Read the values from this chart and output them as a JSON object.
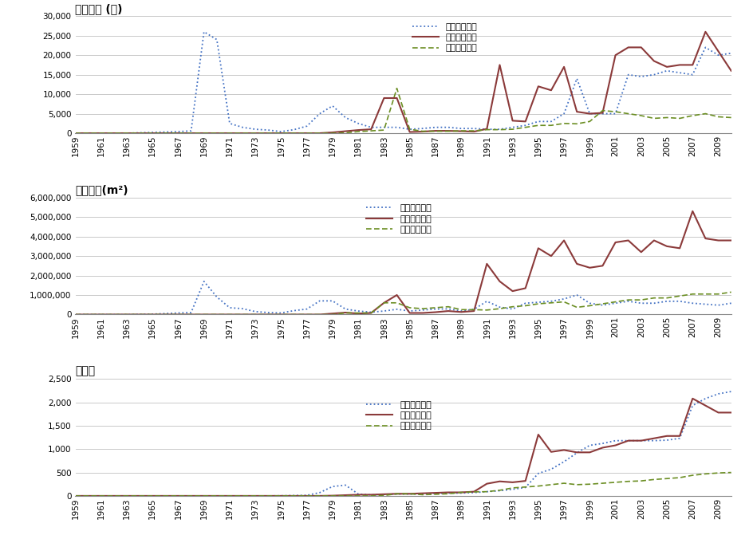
{
  "years": [
    1959,
    1960,
    1961,
    1962,
    1963,
    1964,
    1965,
    1966,
    1967,
    1968,
    1969,
    1970,
    1971,
    1972,
    1973,
    1974,
    1975,
    1976,
    1977,
    1978,
    1979,
    1980,
    1981,
    1982,
    1983,
    1984,
    1985,
    1986,
    1987,
    1988,
    1989,
    1990,
    1991,
    1992,
    1993,
    1994,
    1995,
    1996,
    1997,
    1998,
    1999,
    2000,
    2001,
    2002,
    2003,
    2004,
    2005,
    2006,
    2007,
    2008,
    2009,
    2010
  ],
  "workers_gwamil": [
    0,
    0,
    0,
    0,
    0,
    100,
    200,
    300,
    400,
    600,
    26000,
    24000,
    2500,
    1500,
    1000,
    800,
    400,
    900,
    1800,
    5000,
    7000,
    4000,
    2500,
    1500,
    1500,
    1500,
    1000,
    1200,
    1500,
    1500,
    1200,
    1200,
    1000,
    1000,
    1500,
    2000,
    3000,
    3000,
    5000,
    14000,
    5000,
    5000,
    5000,
    15000,
    14500,
    15000,
    16000,
    15500,
    15000,
    22000,
    20000,
    20500
  ],
  "workers_seongjang": [
    0,
    0,
    0,
    0,
    0,
    0,
    0,
    0,
    0,
    0,
    0,
    0,
    0,
    0,
    0,
    0,
    0,
    0,
    0,
    0,
    200,
    500,
    800,
    1000,
    9000,
    9000,
    300,
    400,
    600,
    600,
    500,
    400,
    1100,
    17500,
    3200,
    3000,
    12000,
    11000,
    17000,
    5500,
    5000,
    5200,
    20000,
    22000,
    22000,
    18500,
    17000,
    17500,
    17500,
    26000,
    21000,
    16000
  ],
  "workers_jayeon": [
    0,
    0,
    0,
    0,
    0,
    0,
    0,
    0,
    0,
    0,
    0,
    0,
    0,
    0,
    0,
    0,
    0,
    0,
    0,
    0,
    0,
    100,
    400,
    600,
    800,
    11500,
    1000,
    500,
    500,
    500,
    600,
    600,
    900,
    900,
    1000,
    1500,
    2000,
    2000,
    2500,
    2400,
    3000,
    5800,
    5500,
    5000,
    4500,
    3800,
    4000,
    3800,
    4500,
    5000,
    4200,
    4000
  ],
  "area_gwamil": [
    0,
    0,
    0,
    0,
    0,
    10000,
    20000,
    50000,
    80000,
    100000,
    1700000,
    900000,
    350000,
    300000,
    150000,
    100000,
    80000,
    200000,
    280000,
    700000,
    700000,
    280000,
    180000,
    120000,
    180000,
    270000,
    180000,
    230000,
    280000,
    290000,
    180000,
    270000,
    680000,
    380000,
    280000,
    580000,
    630000,
    680000,
    800000,
    1000000,
    580000,
    480000,
    580000,
    680000,
    580000,
    580000,
    680000,
    680000,
    580000,
    530000,
    480000,
    580000
  ],
  "area_seongjang": [
    0,
    0,
    0,
    0,
    0,
    0,
    0,
    0,
    0,
    0,
    0,
    0,
    0,
    0,
    0,
    0,
    0,
    0,
    0,
    0,
    50000,
    100000,
    50000,
    80000,
    600000,
    1000000,
    80000,
    80000,
    120000,
    180000,
    130000,
    180000,
    2600000,
    1700000,
    1200000,
    1350000,
    3400000,
    3000000,
    3800000,
    2600000,
    2400000,
    2500000,
    3700000,
    3800000,
    3200000,
    3800000,
    3500000,
    3400000,
    5300000,
    3900000,
    3800000,
    3800000
  ],
  "area_jayeon": [
    0,
    0,
    0,
    0,
    0,
    0,
    0,
    0,
    0,
    0,
    0,
    0,
    0,
    0,
    0,
    0,
    0,
    0,
    0,
    0,
    0,
    80000,
    80000,
    80000,
    600000,
    600000,
    350000,
    300000,
    350000,
    400000,
    250000,
    250000,
    230000,
    300000,
    400000,
    450000,
    550000,
    600000,
    650000,
    370000,
    450000,
    550000,
    650000,
    750000,
    750000,
    850000,
    850000,
    950000,
    1050000,
    1050000,
    1050000,
    1150000
  ],
  "factory_gwamil": [
    0,
    0,
    0,
    0,
    0,
    0,
    0,
    0,
    0,
    0,
    0,
    0,
    0,
    0,
    0,
    0,
    3,
    8,
    12,
    70,
    200,
    230,
    40,
    20,
    30,
    40,
    40,
    40,
    50,
    60,
    60,
    70,
    90,
    110,
    140,
    180,
    480,
    570,
    730,
    920,
    1080,
    1120,
    1180,
    1180,
    1180,
    1180,
    1190,
    1230,
    1930,
    2080,
    2180,
    2230
  ],
  "factory_seongjang": [
    0,
    0,
    0,
    0,
    0,
    0,
    0,
    0,
    0,
    0,
    0,
    0,
    0,
    0,
    0,
    0,
    0,
    0,
    0,
    0,
    5,
    15,
    25,
    25,
    35,
    45,
    45,
    55,
    65,
    75,
    75,
    90,
    260,
    310,
    290,
    320,
    1310,
    940,
    980,
    930,
    930,
    1030,
    1080,
    1180,
    1180,
    1230,
    1280,
    1280,
    2080,
    1930,
    1780,
    1780
  ],
  "factory_jayeon": [
    0,
    0,
    0,
    0,
    0,
    0,
    0,
    0,
    0,
    0,
    0,
    0,
    0,
    0,
    0,
    0,
    0,
    0,
    0,
    0,
    0,
    0,
    0,
    0,
    8,
    45,
    45,
    25,
    35,
    45,
    75,
    85,
    90,
    120,
    170,
    190,
    210,
    240,
    270,
    240,
    250,
    270,
    290,
    310,
    320,
    350,
    370,
    390,
    440,
    470,
    490,
    500
  ],
  "title1": "근로자수 (명)",
  "title2": "부지면적(m²)",
  "title3": "공장수",
  "legend1": "과밀억제권역",
  "legend2": "성장관리권역",
  "legend3": "자연보전권역",
  "color_gwamil": "#4472C4",
  "color_seongjang": "#8B3A3A",
  "color_jayeon": "#6B8E23",
  "ylim1": [
    0,
    30000
  ],
  "ylim2": [
    0,
    6000000
  ],
  "ylim3": [
    0,
    2500
  ],
  "yticks1": [
    0,
    5000,
    10000,
    15000,
    20000,
    25000,
    30000
  ],
  "yticks2": [
    0,
    1000000,
    2000000,
    3000000,
    4000000,
    5000000,
    6000000
  ],
  "yticks3": [
    0,
    500,
    1000,
    1500,
    2000,
    2500
  ],
  "xtick_years": [
    1959,
    1961,
    1963,
    1965,
    1967,
    1969,
    1971,
    1973,
    1975,
    1977,
    1979,
    1981,
    1983,
    1985,
    1987,
    1989,
    1991,
    1993,
    1995,
    1997,
    1999,
    2001,
    2003,
    2005,
    2007,
    2009
  ],
  "bg_color": "#FFFFFF",
  "grid_color": "#C0C0C0",
  "spine_color": "#888888"
}
